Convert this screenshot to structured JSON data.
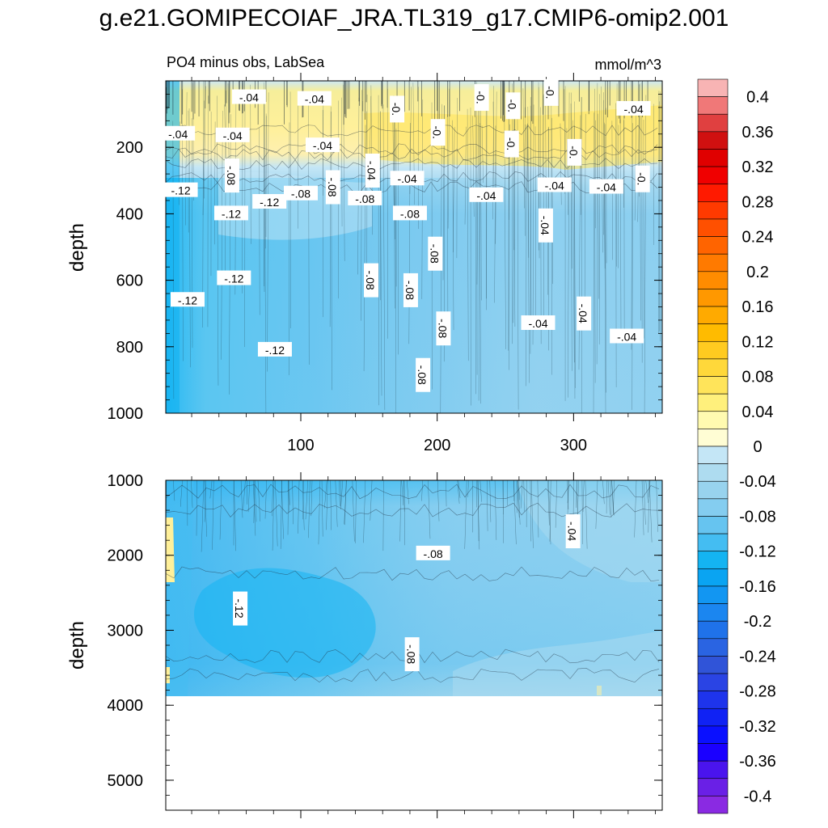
{
  "title": "g.e21.GOMIPECOIAF_JRA.TL319_g17.CMIP6-omip2.001",
  "chart_data": [
    {
      "type": "heatmap",
      "panel": "upper",
      "subtitle_left": "PO4 minus obs, LabSea",
      "subtitle_right": "mmol/m^3",
      "ylabel": "depth",
      "xlabel": "",
      "xlim": [
        1,
        365
      ],
      "ylim": [
        0,
        1000
      ],
      "y_inverted": true,
      "x_ticks": [
        "100",
        "200",
        "300"
      ],
      "y_ticks": [
        "200",
        "400",
        "600",
        "800",
        "1000"
      ],
      "regions": [
        {
          "depth_range": [
            0,
            60
          ],
          "value": -0.02
        },
        {
          "depth_range": [
            60,
            200
          ],
          "value": 0.02
        },
        {
          "depth_range": [
            200,
            250
          ],
          "value": -0.02
        },
        {
          "depth_range": [
            250,
            320
          ],
          "value": -0.06
        },
        {
          "depth_range": [
            320,
            1000
          ],
          "value": -0.09
        }
      ],
      "contour_labels": [
        {
          "text": "-.04",
          "x": 62,
          "depth": 50
        },
        {
          "text": "-.04",
          "x": 110,
          "depth": 55
        },
        {
          "text": "-.04",
          "x": 10,
          "depth": 160
        },
        {
          "text": "-.04",
          "x": 50,
          "depth": 165
        },
        {
          "text": "-.04",
          "x": 116,
          "depth": 195
        },
        {
          "text": "-.04",
          "x": 152,
          "depth": 270
        },
        {
          "text": "-.04",
          "x": 178,
          "depth": 295
        },
        {
          "text": "-.04",
          "x": 236,
          "depth": 345
        },
        {
          "text": "-.04",
          "x": 286,
          "depth": 315
        },
        {
          "text": "-.04",
          "x": 324,
          "depth": 320
        },
        {
          "text": "-.04",
          "x": 279,
          "depth": 435
        },
        {
          "text": "-.04",
          "x": 274,
          "depth": 730
        },
        {
          "text": "-.04",
          "x": 307,
          "depth": 700
        },
        {
          "text": "-.04",
          "x": 339,
          "depth": 770
        },
        {
          "text": "-.04",
          "x": 344,
          "depth": 85
        },
        {
          "text": "-0.",
          "x": 170,
          "depth": 85
        },
        {
          "text": "-0.",
          "x": 232,
          "depth": 50
        },
        {
          "text": "-0.",
          "x": 255,
          "depth": 75
        },
        {
          "text": "-0.",
          "x": 283,
          "depth": 35
        },
        {
          "text": "-0.",
          "x": 200,
          "depth": 155
        },
        {
          "text": "-0.",
          "x": 254,
          "depth": 190
        },
        {
          "text": "-0.",
          "x": 300,
          "depth": 215
        },
        {
          "text": "-0.",
          "x": 350,
          "depth": 295
        },
        {
          "text": "-.08",
          "x": 49,
          "depth": 285
        },
        {
          "text": "-.08",
          "x": 100,
          "depth": 340
        },
        {
          "text": "-.08",
          "x": 123,
          "depth": 320
        },
        {
          "text": "-.08",
          "x": 147,
          "depth": 355
        },
        {
          "text": "-.08",
          "x": 180,
          "depth": 400
        },
        {
          "text": "-.08",
          "x": 198,
          "depth": 520
        },
        {
          "text": "-.08",
          "x": 151,
          "depth": 600
        },
        {
          "text": "-.08",
          "x": 180,
          "depth": 630
        },
        {
          "text": "-.08",
          "x": 204,
          "depth": 745
        },
        {
          "text": "-.08",
          "x": 189,
          "depth": 885
        },
        {
          "text": "-.12",
          "x": 12,
          "depth": 330
        },
        {
          "text": "-.12",
          "x": 49,
          "depth": 400
        },
        {
          "text": "-.12",
          "x": 77,
          "depth": 365
        },
        {
          "text": "-.12",
          "x": 51,
          "depth": 595
        },
        {
          "text": "-.12",
          "x": 17,
          "depth": 660
        },
        {
          "text": "-.12",
          "x": 81,
          "depth": 810
        }
      ]
    },
    {
      "type": "heatmap",
      "panel": "lower",
      "ylabel": "depth",
      "xlabel": "",
      "xlim": [
        1,
        365
      ],
      "ylim": [
        1000,
        5400
      ],
      "y_inverted": true,
      "x_ticks": [
        "",
        "",
        ""
      ],
      "y_ticks": [
        "1000",
        "2000",
        "3000",
        "4000",
        "5000"
      ],
      "data_max_depth": 3900,
      "regions": [
        {
          "depth_range": [
            1000,
            1200
          ],
          "value": -0.1
        },
        {
          "depth_range": [
            1200,
            2300
          ],
          "value": -0.09
        },
        {
          "depth_range": [
            2300,
            3300
          ],
          "value": -0.1
        },
        {
          "depth_range": [
            3300,
            3900
          ],
          "value": -0.08
        }
      ],
      "contour_labels": [
        {
          "text": "-.04",
          "x": 299,
          "depth": 1680
        },
        {
          "text": "-.08",
          "x": 197,
          "depth": 1980
        },
        {
          "text": "-.12",
          "x": 55,
          "depth": 2710
        },
        {
          "text": "-.08",
          "x": 181,
          "depth": 3320
        }
      ]
    }
  ],
  "colorbar": {
    "min": -0.42,
    "max": 0.42,
    "step": 0.02,
    "labels": [
      "0.4",
      "0.36",
      "0.32",
      "0.28",
      "0.24",
      "0.2",
      "0.16",
      "0.12",
      "0.08",
      "0.04",
      "0",
      "-0.04",
      "-0.08",
      "-0.12",
      "-0.16",
      "-0.2",
      "-0.24",
      "-0.28",
      "-0.32",
      "-0.36",
      "-0.4"
    ],
    "label_values": [
      0.4,
      0.36,
      0.32,
      0.28,
      0.24,
      0.2,
      0.16,
      0.12,
      0.08,
      0.04,
      0,
      -0.04,
      -0.08,
      -0.12,
      -0.16,
      -0.2,
      -0.24,
      -0.28,
      -0.32,
      -0.36,
      -0.4
    ],
    "colors": [
      "#f8b4b4",
      "#f07878",
      "#e04040",
      "#d01010",
      "#e00000",
      "#f00000",
      "#ff1a00",
      "#ff3a00",
      "#ff5000",
      "#ff6400",
      "#ff7a00",
      "#ff8c00",
      "#ff9800",
      "#ffaa00",
      "#ffbb00",
      "#ffcb20",
      "#ffd83a",
      "#ffe45a",
      "#fff07c",
      "#fffab0",
      "#fffdd4",
      "#c4e6f6",
      "#aedcf0",
      "#98d3ee",
      "#84cdf0",
      "#66c4f0",
      "#44bdf2",
      "#14b4f2",
      "#0aa4f2",
      "#1296f2",
      "#1b86f0",
      "#1f72ea",
      "#2a64e2",
      "#3054d8",
      "#2a44e4",
      "#1e34ec",
      "#1022f4",
      "#0a10ff",
      "#1a00ff",
      "#4a14ee",
      "#6a20e6",
      "#8a2ae2"
    ]
  }
}
